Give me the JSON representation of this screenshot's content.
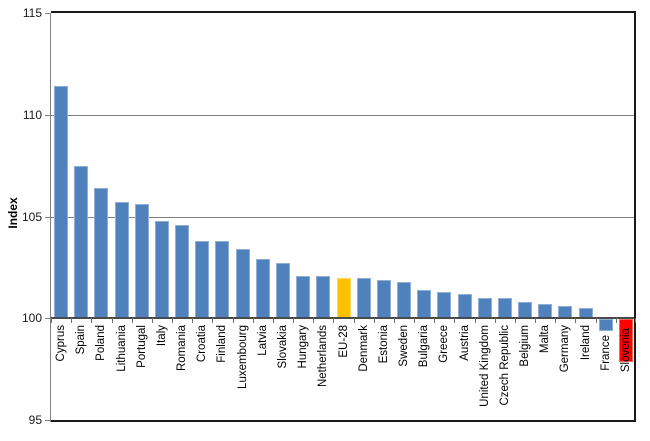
{
  "chart_data": {
    "type": "bar",
    "title": "",
    "xlabel": "",
    "ylabel": "Index",
    "ylim": [
      95,
      115
    ],
    "yticks": [
      115,
      110,
      105,
      100,
      95
    ],
    "baseline": 100,
    "grid": true,
    "legend_position": "none",
    "categories": [
      "Cyprus",
      "Spain",
      "Poland",
      "Lithuania",
      "Portugal",
      "Italy",
      "Romania",
      "Croatia",
      "Finland",
      "Luxembourg",
      "Latvia",
      "Slovakia",
      "Hungary",
      "Netherlands",
      "EU-28",
      "Denmark",
      "Estonia",
      "Sweden",
      "Bulgaria",
      "Greece",
      "Austria",
      "United Kingdom",
      "Czech Republic",
      "Belgium",
      "Malta",
      "Germany",
      "Ireland",
      "France",
      "Slovenia"
    ],
    "values": [
      111.4,
      107.5,
      106.4,
      105.7,
      105.6,
      104.8,
      104.6,
      103.8,
      103.8,
      103.4,
      102.9,
      102.7,
      102.1,
      102.1,
      102.0,
      102.0,
      101.9,
      101.8,
      101.4,
      101.3,
      101.2,
      101.0,
      101.0,
      100.8,
      100.7,
      100.6,
      100.5,
      99.4,
      97.9
    ],
    "colors": {
      "default_bar": "#4F81BD",
      "default_bar_edge": "#8FAFD6",
      "highlight_eu28": "#FFC000",
      "highlight_eu28_edge": "#FFD966",
      "highlight_slovenia": "#FF0000",
      "highlight_slovenia_edge": "#FF6655"
    },
    "highlighted_categories": {
      "EU-28": "highlight_eu28",
      "Slovenia": "highlight_slovenia"
    }
  }
}
